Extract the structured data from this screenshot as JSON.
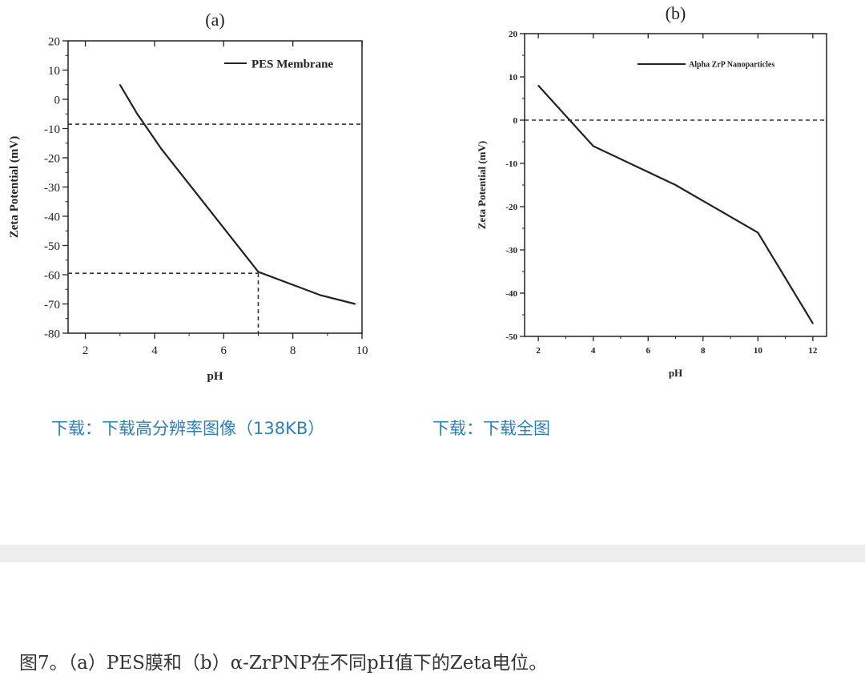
{
  "chart_data": [
    {
      "panel": "(a)",
      "type": "line",
      "xlabel": "pH",
      "ylabel": "Zeta Potential (mV)",
      "xlim": [
        1.5,
        10
      ],
      "ylim": [
        -80,
        20
      ],
      "xticks": [
        2,
        4,
        6,
        8,
        10
      ],
      "yticks": [
        20,
        10,
        0,
        -10,
        -20,
        -30,
        -40,
        -50,
        -60,
        -70,
        -80
      ],
      "legend_position": "top-right",
      "series": [
        {
          "name": "PES Membrane",
          "x": [
            3,
            3.5,
            4.2,
            5.6,
            7,
            8.8,
            9.8
          ],
          "y": [
            5,
            -5,
            -17,
            -38,
            -59,
            -67,
            -70
          ]
        }
      ],
      "reference_lines": [
        {
          "orientation": "horizontal",
          "y": -8.5,
          "style": "dashed"
        },
        {
          "orientation": "horizontal",
          "y": -59.5,
          "style": "dashed",
          "x_to": 7
        },
        {
          "orientation": "vertical",
          "x": 7,
          "style": "dashed",
          "y_to": -59.5
        }
      ]
    },
    {
      "panel": "(b)",
      "type": "line",
      "xlabel": "pH",
      "ylabel": "Zeta Potential (mV)",
      "xlim": [
        1.5,
        12.5
      ],
      "ylim": [
        -50,
        20
      ],
      "xticks": [
        2,
        4,
        6,
        8,
        10,
        12
      ],
      "yticks": [
        20,
        10,
        0,
        -10,
        -20,
        -30,
        -40,
        -50
      ],
      "legend_position": "top-right",
      "series": [
        {
          "name": "Alpha ZrP Nanoparticles",
          "x": [
            2,
            4,
            7,
            10,
            12
          ],
          "y": [
            8,
            -6,
            -15,
            -26,
            -47
          ]
        }
      ],
      "reference_lines": [
        {
          "orientation": "horizontal",
          "y": 0,
          "style": "dashed"
        }
      ]
    }
  ],
  "links": {
    "download_hi_res": "下载：下载高分辨率图像（138KB）",
    "download_full": "下载：下载全图"
  },
  "caption": "图7。（a）PES膜和（b）α-ZrPNP在不同pH值下的Zeta电位。"
}
